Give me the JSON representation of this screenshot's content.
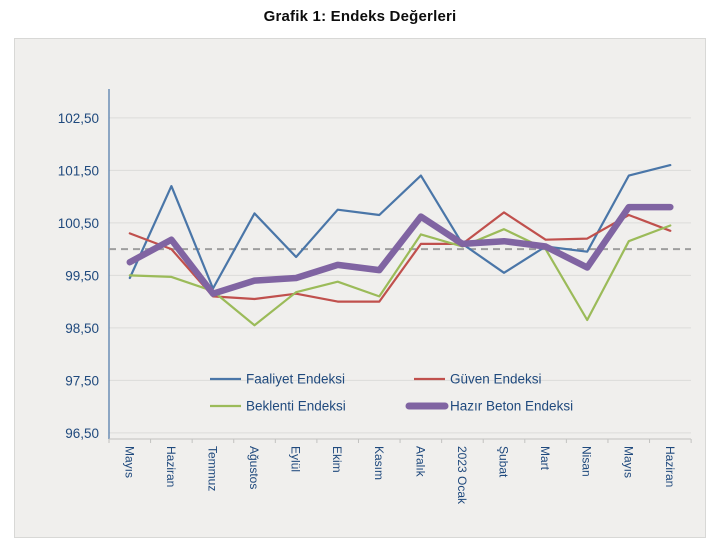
{
  "title": "Grafik 1: Endeks Değerleri",
  "colors": {
    "faaliyet": "#4a76a8",
    "guven": "#c0504d",
    "beklenti": "#9bbb59",
    "hazir_beton": "#8064a2",
    "reference_line": "#9e9e9e",
    "axis_text": "#1f497d",
    "gridline": "#dcdcda",
    "x_axis_line": "#c2c2c0",
    "y_axis_line": "#4a76a8",
    "plot_background": "#f0efed"
  },
  "chart_data": {
    "type": "line",
    "title": "Grafik 1: Endeks Değerleri",
    "categories": [
      "Mayıs",
      "Haziran",
      "Temmuz",
      "Ağustos",
      "Eylül",
      "Ekim",
      "Kasım",
      "Aralık",
      "2023 Ocak",
      "Şubat",
      "Mart",
      "Nisan",
      "Mayıs",
      "Haziran"
    ],
    "series": [
      {
        "name": "Faaliyet Endeksi",
        "color": "#4a76a8",
        "line_width": 2.2,
        "values": [
          99.45,
          101.2,
          99.25,
          100.68,
          99.85,
          100.75,
          100.65,
          101.4,
          100.1,
          99.55,
          100.05,
          99.95,
          101.4,
          101.6
        ]
      },
      {
        "name": "Güven Endeksi",
        "color": "#c0504d",
        "line_width": 2.2,
        "values": [
          100.3,
          100.0,
          99.1,
          99.05,
          99.15,
          99.0,
          99.0,
          100.1,
          100.1,
          100.7,
          100.18,
          100.2,
          100.65,
          100.35
        ]
      },
      {
        "name": "Beklenti Endeksi",
        "color": "#9bbb59",
        "line_width": 2.2,
        "values": [
          99.5,
          99.47,
          99.2,
          98.55,
          99.18,
          99.38,
          99.1,
          100.28,
          100.05,
          100.38,
          100.0,
          98.65,
          100.15,
          100.45
        ]
      },
      {
        "name": "Hazır Beton Endeksi",
        "color": "#8064a2",
        "line_width": 6.5,
        "values": [
          99.75,
          100.18,
          99.15,
          99.4,
          99.45,
          99.7,
          99.6,
          100.62,
          100.1,
          100.15,
          100.05,
          99.65,
          100.8,
          100.8
        ]
      }
    ],
    "reference_line": {
      "value": 100.0,
      "style": "dashed",
      "color": "#9e9e9e"
    },
    "y_axis": {
      "min": 96.5,
      "max": 103.05,
      "ticks": [
        102.5,
        101.5,
        100.5,
        99.5,
        98.5,
        97.5,
        96.5
      ],
      "tick_labels": [
        "102,50",
        "101,50",
        "100,50",
        "99,50",
        "98,50",
        "97,50",
        "96,50"
      ],
      "decimal_separator": ","
    },
    "x_axis": {
      "label_rotation": "vertical"
    },
    "grid": "horizontal",
    "legend_position": "inside-bottom",
    "legend_rows": [
      [
        "Faaliyet Endeksi",
        "Güven Endeksi"
      ],
      [
        "Beklenti Endeksi",
        "Hazır Beton Endeksi"
      ]
    ]
  }
}
